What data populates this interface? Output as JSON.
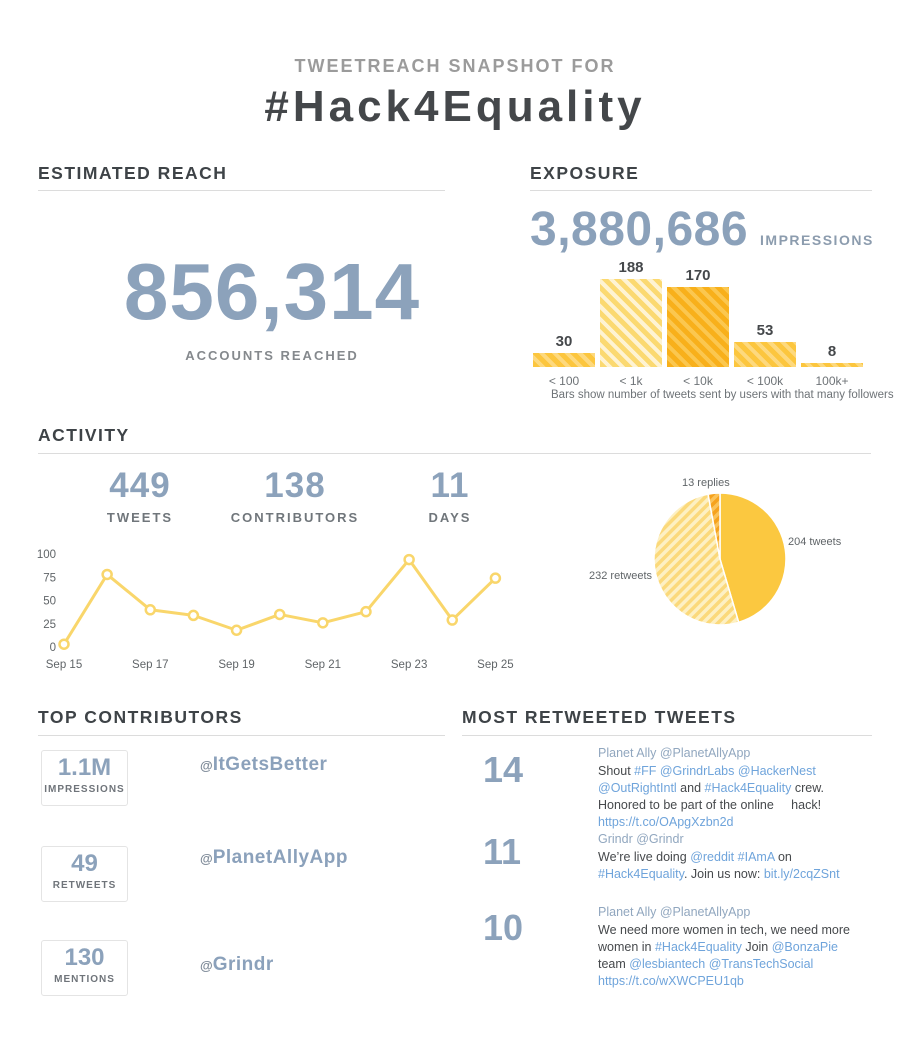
{
  "header": {
    "eyebrow": "TWEETREACH SNAPSHOT FOR",
    "title": "#Hack4Equality"
  },
  "colors": {
    "accent_blue": "#8ca2bb",
    "solid_yellow": "#fbc840",
    "light_yellow": "#fbd971",
    "dark_orange": "#f8b01b",
    "line_yellow": "#f9d66b",
    "link_blue": "#6fa4db",
    "dark_text": "#44474a",
    "gray_text": "#6e7377",
    "divider": "#dcdcdc"
  },
  "estimated_reach": {
    "section_title": "ESTIMATED REACH",
    "value": "856,314",
    "label": "ACCOUNTS REACHED"
  },
  "exposure": {
    "section_title": "EXPOSURE",
    "value": "3,880,686",
    "label": "IMPRESSIONS"
  },
  "activity": {
    "section_title": "ACTIVITY",
    "stats": [
      {
        "value": "449",
        "label": "TWEETS"
      },
      {
        "value": "138",
        "label": "CONTRIBUTORS"
      },
      {
        "value": "11",
        "label": "DAYS"
      }
    ]
  },
  "chart_data": [
    {
      "type": "bar",
      "title": "Tweets by follower count of sender",
      "categories": [
        "< 100",
        "< 1k",
        "< 10k",
        "< 100k",
        "100k+"
      ],
      "values": [
        30,
        188,
        170,
        53,
        8
      ],
      "bar_shades": [
        "medium",
        "light",
        "dark",
        "medium",
        "medium"
      ],
      "shades": {
        "medium": [
          "#fcc63e",
          "#fdd97e"
        ],
        "light": [
          "#fbd971",
          "#fef3d3"
        ],
        "dark": [
          "#f8b01b",
          "#fbc74f"
        ]
      },
      "ylim": [
        0,
        188
      ],
      "caption": "Bars show number of tweets sent by users with that many followers"
    },
    {
      "type": "line",
      "title": "Tweets per day",
      "x": [
        "Sep 15",
        "Sep 16",
        "Sep 17",
        "Sep 18",
        "Sep 19",
        "Sep 20",
        "Sep 21",
        "Sep 22",
        "Sep 23",
        "Sep 24",
        "Sep 25"
      ],
      "values": [
        3,
        78,
        40,
        34,
        18,
        35,
        26,
        38,
        94,
        29,
        74
      ],
      "yticks": [
        100,
        75,
        50,
        25,
        0
      ],
      "xtick_indices": [
        0,
        2,
        4,
        6,
        8,
        10
      ],
      "ylim": [
        0,
        100
      ],
      "line_color": "#f9d66b",
      "marker_fill": "#ffffff"
    },
    {
      "type": "pie",
      "title": "Tweet types",
      "slices": [
        {
          "label": "204 tweets",
          "value": 204,
          "fill": "#fbc840",
          "pattern": null
        },
        {
          "label": "232 retweets",
          "value": 232,
          "fill": null,
          "pattern": [
            "#fdf0c3",
            "#fbd97b"
          ]
        },
        {
          "label": "13 replies",
          "value": 13,
          "fill": null,
          "pattern": [
            "#f6a21d",
            "#fbc35a"
          ]
        }
      ],
      "labels": {
        "replies": "13 replies",
        "tweets": "204 tweets",
        "retweets": "232 retweets"
      }
    }
  ],
  "top_contributors": {
    "section_title": "TOP CONTRIBUTORS",
    "items": [
      {
        "metric": "1.1M",
        "metric_label": "IMPRESSIONS",
        "at": "@",
        "handle": "ItGetsBetter"
      },
      {
        "metric": "49",
        "metric_label": "RETWEETS",
        "at": "@",
        "handle": "PlanetAllyApp"
      },
      {
        "metric": "130",
        "metric_label": "MENTIONS",
        "at": "@",
        "handle": "Grindr"
      }
    ]
  },
  "most_retweeted": {
    "section_title": "MOST RETWEETED TWEETS",
    "tweets": [
      {
        "count": "14",
        "author": "Planet Ally @PlanetAllyApp",
        "segments": [
          {
            "t": "Shout ",
            "l": false
          },
          {
            "t": "#FF",
            "l": true
          },
          {
            "t": " ",
            "l": false
          },
          {
            "t": "@GrindrLabs",
            "l": true
          },
          {
            "t": " ",
            "l": false
          },
          {
            "t": "@HackerNest",
            "l": true
          },
          {
            "t": " ",
            "l": false
          },
          {
            "t": "@OutRightIntl",
            "l": true
          },
          {
            "t": " and ",
            "l": false
          },
          {
            "t": "#Hack4Equality",
            "l": true
          },
          {
            "t": " crew. Honored to be part of the online     hack! ",
            "l": false
          },
          {
            "t": "https://t.co/OApgXzbn2d",
            "l": true
          }
        ]
      },
      {
        "count": "11",
        "author": "Grindr @Grindr",
        "segments": [
          {
            "t": "We’re live doing ",
            "l": false
          },
          {
            "t": "@reddit",
            "l": true
          },
          {
            "t": " ",
            "l": false
          },
          {
            "t": "#IAmA",
            "l": true
          },
          {
            "t": " on ",
            "l": false
          },
          {
            "t": "#Hack4Equality",
            "l": true
          },
          {
            "t": ". Join us now: ",
            "l": false
          },
          {
            "t": "bit.ly/2cqZSnt",
            "l": true
          }
        ]
      },
      {
        "count": "10",
        "author": "Planet Ally @PlanetAllyApp",
        "segments": [
          {
            "t": "We need more women in tech, we need more women in ",
            "l": false
          },
          {
            "t": "#Hack4Equality",
            "l": true
          },
          {
            "t": " Join ",
            "l": false
          },
          {
            "t": "@BonzaPie",
            "l": true
          },
          {
            "t": " team ",
            "l": false
          },
          {
            "t": "@lesbiantech",
            "l": true
          },
          {
            "t": " ",
            "l": false
          },
          {
            "t": "@TransTechSocial",
            "l": true
          },
          {
            "t": " ",
            "l": false
          },
          {
            "t": "https://t.co/wXWCPEU1qb",
            "l": true
          }
        ]
      }
    ]
  }
}
